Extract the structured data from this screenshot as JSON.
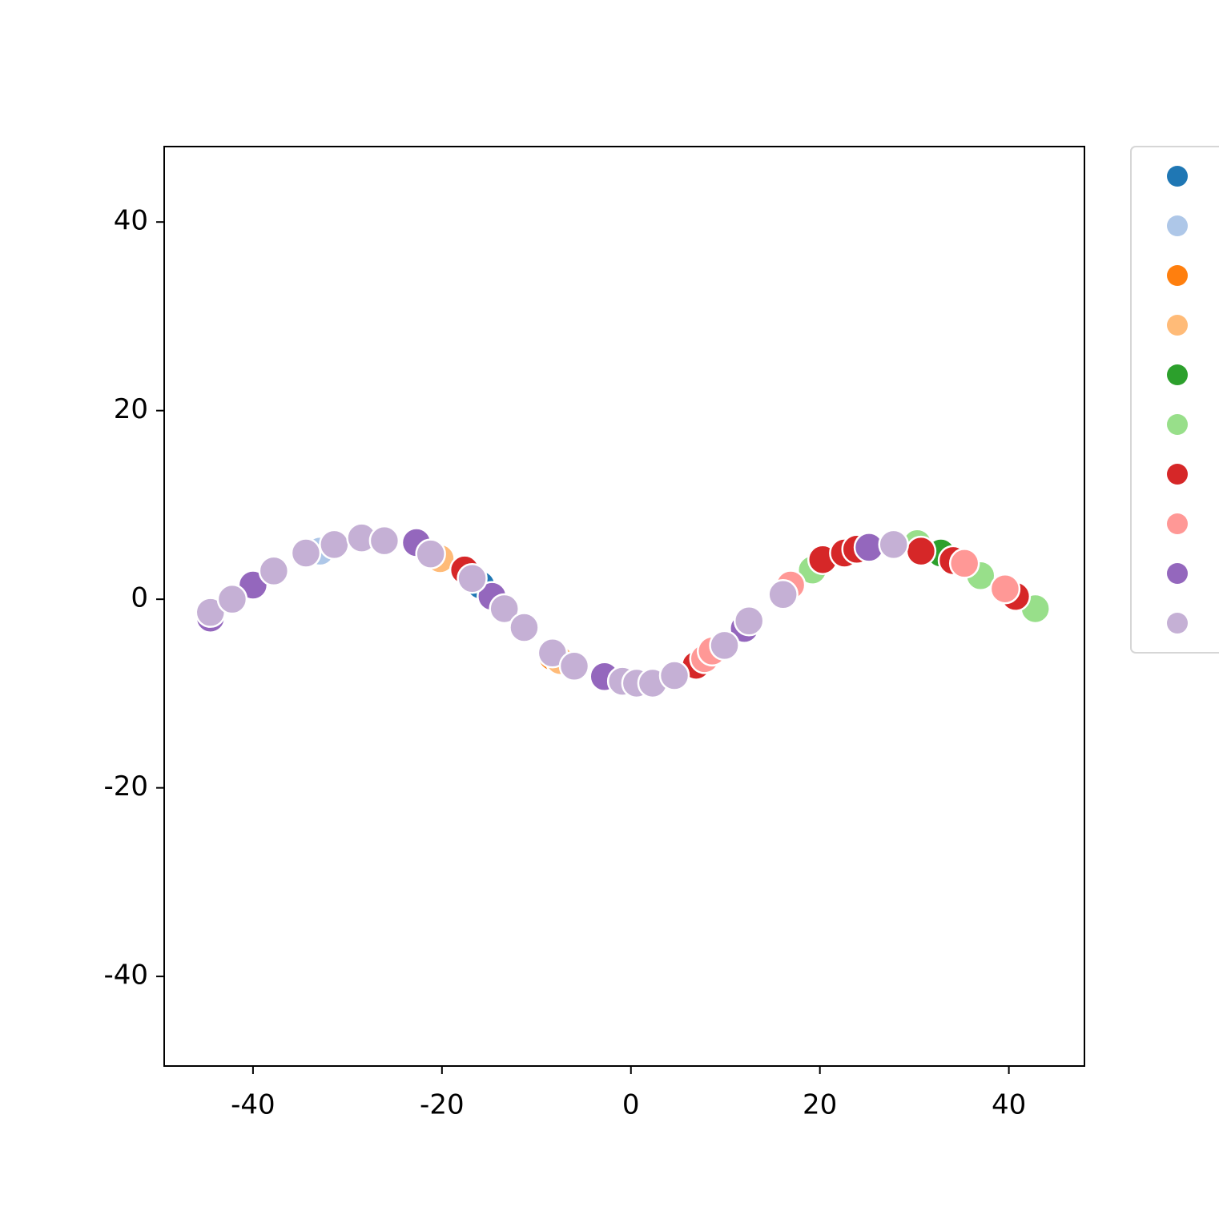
{
  "chart_data": {
    "type": "scatter",
    "xlim": [
      -49.4,
      48.0
    ],
    "ylim": [
      -49.5,
      48.0
    ],
    "xticks": [
      -40,
      -20,
      0,
      20,
      40
    ],
    "yticks": [
      -40,
      -20,
      0,
      20,
      40
    ],
    "grid": false,
    "legend": "outside-right",
    "series": [
      {
        "color": "#1f77b4",
        "x": [
          -15.9
        ],
        "y": [
          1.5
        ]
      },
      {
        "color": "#aec7e8",
        "x": [
          -32.9
        ],
        "y": [
          5.1
        ]
      },
      {
        "color": "#ff7f0e",
        "x": [
          -8.3
        ],
        "y": [
          -6.1
        ]
      },
      {
        "color": "#ffbb78",
        "x": [
          -20.2,
          -7.5
        ],
        "y": [
          4.3,
          -6.5
        ]
      },
      {
        "color": "#2ca02c",
        "x": [
          32.8
        ],
        "y": [
          4.9
        ]
      },
      {
        "color": "#98df8a",
        "x": [
          19.2,
          30.3,
          37.0,
          42.8
        ],
        "y": [
          3.1,
          5.9,
          2.5,
          -1.0
        ]
      },
      {
        "color": "#d62728",
        "x": [
          -17.6,
          6.9,
          20.3,
          22.6,
          23.9,
          30.7,
          34.1,
          40.7
        ],
        "y": [
          3.1,
          -7.0,
          4.2,
          4.9,
          5.3,
          5.1,
          4.1,
          0.3
        ]
      },
      {
        "color": "#ff9896",
        "x": [
          7.8,
          8.6,
          16.9,
          35.3,
          39.6
        ],
        "y": [
          -6.3,
          -5.5,
          1.5,
          3.8,
          1.1
        ]
      },
      {
        "color": "#9467bd",
        "x": [
          -44.5,
          -40.0,
          -22.7,
          -14.7,
          -2.8,
          12.0,
          25.2
        ],
        "y": [
          -2.0,
          1.5,
          6.0,
          0.3,
          -8.2,
          -3.1,
          5.5
        ]
      },
      {
        "color": "#c5b0d5",
        "x": [
          -44.5,
          -42.2,
          -37.8,
          -34.4,
          -31.4,
          -28.5,
          -26.1,
          -21.2,
          -16.8,
          -13.4,
          -11.3,
          -8.3,
          -6.0,
          -0.9,
          0.6,
          2.3,
          4.6,
          9.9,
          12.5,
          16.1,
          27.8
        ],
        "y": [
          -1.4,
          0.0,
          3.0,
          4.9,
          5.8,
          6.5,
          6.2,
          4.8,
          2.2,
          -1.0,
          -3.0,
          -5.7,
          -7.1,
          -8.7,
          -8.9,
          -8.9,
          -8.1,
          -4.9,
          -2.3,
          0.5,
          5.8
        ]
      }
    ]
  }
}
